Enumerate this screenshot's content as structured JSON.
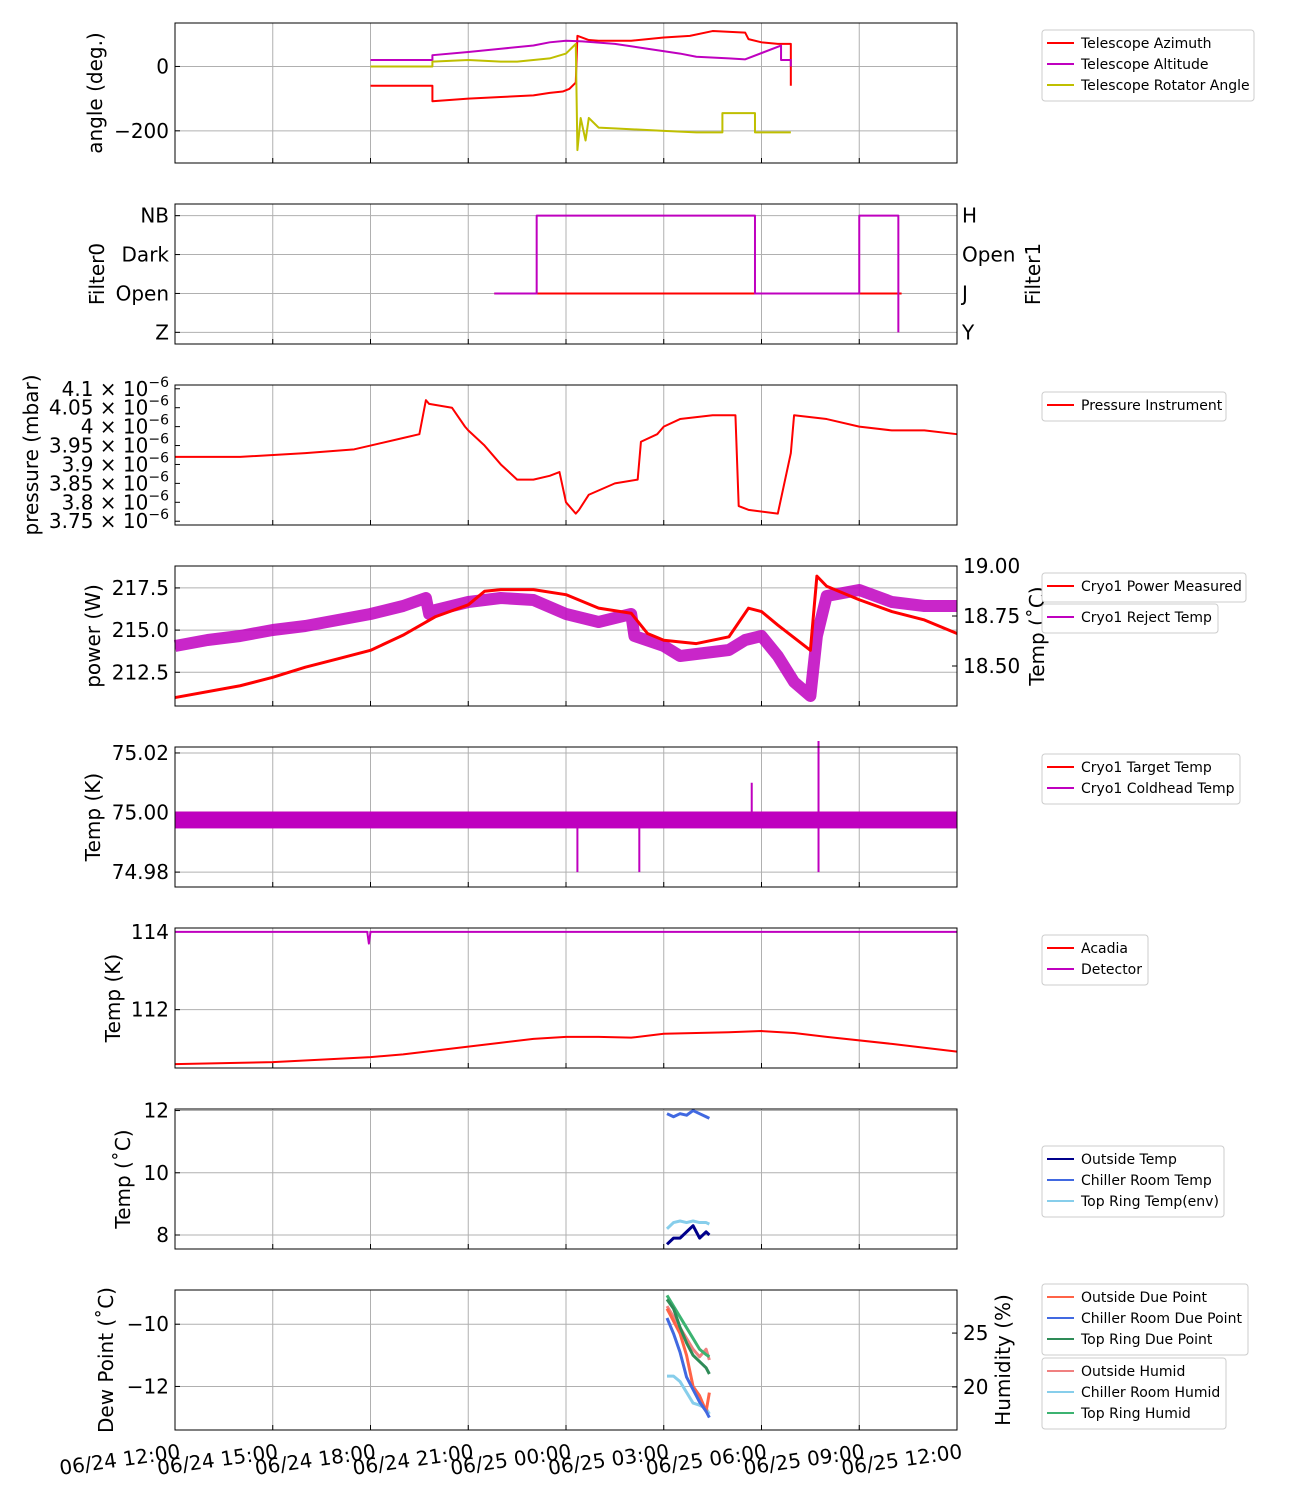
{
  "x_axis": {
    "ticks": [
      "06/24 12:00",
      "06/24 15:00",
      "06/24 18:00",
      "06/24 21:00",
      "06/25 00:00",
      "06/25 03:00",
      "06/25 06:00",
      "06/25 09:00",
      "06/25 12:00"
    ],
    "range_hours": [
      0,
      24
    ]
  },
  "chart_data": [
    {
      "type": "line",
      "id": "angles",
      "ylabel": "angle (deg.)",
      "ylim": [
        -300,
        135
      ],
      "yticks": [
        {
          "v": 0,
          "t": "0"
        },
        {
          "v": -200,
          "t": "−200"
        }
      ],
      "grid": true,
      "legend": "right",
      "series": [
        {
          "name": "Telescope Azimuth",
          "color": "#ff0000",
          "x": [
            6.0,
            7.9,
            7.9,
            9.0,
            10.0,
            11.0,
            11.5,
            11.9,
            12.1,
            12.3,
            12.35,
            12.7,
            13.0,
            14.0,
            15.0,
            15.8,
            16.5,
            17.5,
            17.6,
            18.0,
            18.5,
            18.9,
            18.9
          ],
          "y": [
            -60,
            -60,
            -108,
            -100,
            -95,
            -90,
            -82,
            -78,
            -70,
            -50,
            95,
            82,
            80,
            80,
            90,
            95,
            110,
            105,
            85,
            75,
            70,
            70,
            -60
          ]
        },
        {
          "name": "Telescope Altitude",
          "color": "#bf00bf",
          "x": [
            6.0,
            7.9,
            7.9,
            9.0,
            10.0,
            11.0,
            11.5,
            12.0,
            12.5,
            13.5,
            14.5,
            15.5,
            16.0,
            17.0,
            17.5,
            18.6,
            18.6,
            18.9,
            18.9
          ],
          "y": [
            20,
            20,
            35,
            45,
            55,
            65,
            75,
            80,
            78,
            70,
            55,
            40,
            30,
            25,
            22,
            65,
            20,
            20,
            0
          ]
        },
        {
          "name": "Telescope Rotator Angle",
          "color": "#bfbf00",
          "x": [
            6.0,
            7.9,
            7.9,
            9.0,
            10.0,
            10.5,
            11.0,
            11.5,
            12.0,
            12.2,
            12.3,
            12.35,
            12.45,
            12.6,
            12.7,
            12.9,
            13.0,
            14.0,
            15.0,
            16.0,
            16.5,
            16.8,
            16.8,
            17.8,
            17.8,
            18.0,
            18.5,
            18.9
          ],
          "y": [
            0,
            0,
            15,
            20,
            15,
            15,
            20,
            25,
            40,
            60,
            70,
            -260,
            -160,
            -230,
            -160,
            -180,
            -190,
            -195,
            -200,
            -205,
            -205,
            -205,
            -145,
            -145,
            -205,
            -205,
            -205,
            -205
          ]
        }
      ]
    },
    {
      "type": "step",
      "id": "filters",
      "ylabel": "Filter0",
      "ylabel_right": "Filter1",
      "left_ticks": [
        "Z",
        "Open",
        "Dark",
        "NB"
      ],
      "right_ticks": [
        "Y",
        "J",
        "Open",
        "H"
      ],
      "series": [
        {
          "name": "Filter0",
          "color": "#ff0000",
          "x": [
            9.8,
            22.3
          ],
          "y": [
            1,
            1
          ]
        },
        {
          "name": "Filter1",
          "color": "#bf00bf",
          "x": [
            9.8,
            11.1,
            11.1,
            17.8,
            17.8,
            21.0,
            21.0,
            22.2,
            22.2
          ],
          "y": [
            1,
            1,
            3,
            3,
            1,
            1,
            3,
            3,
            0
          ]
        }
      ]
    },
    {
      "type": "line",
      "id": "pressure",
      "ylabel": "pressure (mbar)",
      "ylim": [
        3.74,
        4.11
      ],
      "yticks": [
        {
          "v": 4.1,
          "t": "4.1"
        },
        {
          "v": 4.05,
          "t": "4.05"
        },
        {
          "v": 4.0,
          "t": "4"
        },
        {
          "v": 3.95,
          "t": "3.95"
        },
        {
          "v": 3.9,
          "t": "3.9"
        },
        {
          "v": 3.85,
          "t": "3.85"
        },
        {
          "v": 3.8,
          "t": "3.8"
        },
        {
          "v": 3.75,
          "t": "3.75"
        }
      ],
      "ytick_suffix_base": "× 10",
      "ytick_suffix_exp": "−6",
      "series": [
        {
          "name": "Pressure Instrument",
          "color": "#ff0000",
          "x": [
            0,
            2,
            4,
            5.5,
            6.0,
            7.0,
            7.5,
            7.7,
            7.8,
            8.5,
            8.9,
            9.0,
            9.5,
            10.0,
            10.5,
            11.0,
            11.5,
            11.8,
            12.0,
            12.3,
            12.4,
            12.7,
            13.5,
            14.2,
            14.3,
            14.8,
            15.0,
            15.5,
            16.5,
            17.2,
            17.3,
            17.6,
            18.5,
            18.9,
            19.0,
            20.0,
            21.0,
            22.0,
            23.0,
            24.0
          ],
          "y": [
            3.92,
            3.92,
            3.93,
            3.94,
            3.95,
            3.97,
            3.98,
            4.07,
            4.06,
            4.05,
            4.0,
            3.99,
            3.95,
            3.9,
            3.86,
            3.86,
            3.87,
            3.88,
            3.8,
            3.77,
            3.78,
            3.82,
            3.85,
            3.86,
            3.96,
            3.98,
            4.0,
            4.02,
            4.03,
            4.03,
            3.79,
            3.78,
            3.77,
            3.93,
            4.03,
            4.02,
            4.0,
            3.99,
            3.99,
            3.98
          ]
        }
      ]
    },
    {
      "type": "line",
      "id": "cryo_power",
      "ylabel": "power (W)",
      "ylabel_right": "Temp (˚C)",
      "ylim": [
        210.5,
        218.8
      ],
      "yticks": [
        {
          "v": 212.5,
          "t": "212.5"
        },
        {
          "v": 215.0,
          "t": "215.0"
        },
        {
          "v": 217.5,
          "t": "217.5"
        }
      ],
      "ylim_right": [
        18.3,
        19.0
      ],
      "yticks_right": [
        {
          "v": 18.5,
          "t": "18.50"
        },
        {
          "v": 18.75,
          "t": "18.75"
        },
        {
          "v": 19.0,
          "t": "19.00"
        }
      ],
      "series": [
        {
          "name": "Cryo1 Power Measured",
          "color": "#ff0000",
          "axis": "left",
          "x": [
            0,
            2,
            3,
            4,
            5,
            6,
            7,
            8,
            9,
            9.5,
            10,
            11,
            12,
            13,
            14,
            14.5,
            15,
            16,
            17,
            17.6,
            18,
            18.5,
            19.5,
            19.7,
            20,
            21,
            22,
            23,
            24
          ],
          "y": [
            211.0,
            211.7,
            212.2,
            212.8,
            213.3,
            213.8,
            214.7,
            215.8,
            216.5,
            217.3,
            217.4,
            217.4,
            217.1,
            216.3,
            216.0,
            214.8,
            214.4,
            214.2,
            214.6,
            216.3,
            216.1,
            215.3,
            213.8,
            218.2,
            217.6,
            216.8,
            216.1,
            215.6,
            214.8
          ]
        },
        {
          "name": "Cryo1 Reject Temp",
          "color": "#bf00bf",
          "axis": "right",
          "x": [
            0,
            1,
            2,
            3,
            4,
            5,
            6,
            7,
            7.7,
            7.8,
            8,
            9,
            10,
            11,
            12,
            13,
            14,
            14.1,
            15,
            15.5,
            16,
            17,
            17.5,
            18,
            18.5,
            19.0,
            19.5,
            19.7,
            20,
            21,
            22,
            23,
            24
          ],
          "y": [
            18.6,
            18.63,
            18.65,
            18.68,
            18.7,
            18.73,
            18.76,
            18.8,
            18.84,
            18.76,
            18.78,
            18.82,
            18.84,
            18.83,
            18.76,
            18.72,
            18.76,
            18.65,
            18.6,
            18.55,
            18.56,
            18.58,
            18.63,
            18.65,
            18.55,
            18.42,
            18.35,
            18.65,
            18.85,
            18.88,
            18.82,
            18.8,
            18.8
          ]
        }
      ]
    },
    {
      "type": "line",
      "id": "cryo_temps",
      "ylabel": "Temp (K)",
      "ylim": [
        74.975,
        75.022
      ],
      "yticks": [
        {
          "v": 74.98,
          "t": "74.98"
        },
        {
          "v": 75.0,
          "t": "75.00"
        },
        {
          "v": 75.02,
          "t": "75.02"
        }
      ],
      "series": [
        {
          "name": "Cryo1 Target Temp",
          "color": "#ff0000",
          "x": [
            0,
            24
          ],
          "y": [
            75.0,
            75.0
          ]
        },
        {
          "name": "Cryo1 Coldhead Temp",
          "color": "#bf00bf",
          "band": [
            74.995,
            75.0
          ],
          "x": [
            0,
            24
          ],
          "y": [
            74.9975,
            74.9975
          ],
          "spikes": [
            {
              "x": 12.35,
              "y": 74.98
            },
            {
              "x": 14.25,
              "y": 74.98
            },
            {
              "x": 17.7,
              "y": 75.01
            },
            {
              "x": 19.75,
              "y": 75.024
            },
            {
              "x": 19.75,
              "y": 74.98
            }
          ]
        }
      ]
    },
    {
      "type": "line",
      "id": "detector",
      "ylabel": "Temp (K)",
      "ylim": [
        110.5,
        114.1
      ],
      "yticks": [
        {
          "v": 112,
          "t": "112"
        },
        {
          "v": 114,
          "t": "114"
        }
      ],
      "series": [
        {
          "name": "Acadia",
          "color": "#ff0000",
          "x": [
            0,
            3,
            6,
            7,
            8,
            9,
            10,
            11,
            12,
            13,
            14,
            15,
            16,
            17,
            18,
            19,
            20,
            22,
            24
          ],
          "y": [
            110.6,
            110.65,
            110.78,
            110.85,
            110.95,
            111.05,
            111.15,
            111.25,
            111.3,
            111.3,
            111.28,
            111.38,
            111.4,
            111.42,
            111.45,
            111.4,
            111.3,
            111.12,
            110.92
          ]
        },
        {
          "name": "Detector",
          "color": "#bf00bf",
          "x": [
            0,
            5.9,
            5.95,
            6.0,
            24
          ],
          "y": [
            114.0,
            114.0,
            113.7,
            114.0,
            114.0
          ]
        }
      ]
    },
    {
      "type": "line",
      "id": "env_temps",
      "ylabel": "Temp (˚C)",
      "ylim": [
        7.55,
        12.05
      ],
      "yticks": [
        {
          "v": 8,
          "t": "8"
        },
        {
          "v": 10,
          "t": "10"
        },
        {
          "v": 12,
          "t": "12"
        }
      ],
      "series": [
        {
          "name": "Outside Temp",
          "color": "#00008b",
          "x": [
            15.1,
            15.3,
            15.5,
            15.7,
            15.9,
            16.1,
            16.3,
            16.4
          ],
          "y": [
            7.7,
            7.9,
            7.9,
            8.1,
            8.3,
            7.9,
            8.1,
            8.0
          ]
        },
        {
          "name": "Chiller Room Temp",
          "color": "#4169e1",
          "x": [
            15.1,
            15.3,
            15.5,
            15.7,
            15.9,
            16.1,
            16.3,
            16.4
          ],
          "y": [
            11.9,
            11.8,
            11.9,
            11.85,
            12.0,
            11.9,
            11.8,
            11.75
          ]
        },
        {
          "name": "Top Ring Temp(env)",
          "color": "#87ceeb",
          "x": [
            15.1,
            15.3,
            15.5,
            15.7,
            15.9,
            16.1,
            16.3,
            16.4
          ],
          "y": [
            8.2,
            8.4,
            8.45,
            8.4,
            8.45,
            8.4,
            8.4,
            8.35
          ]
        }
      ]
    },
    {
      "type": "line",
      "id": "dewpoint",
      "ylabel": "Dew Point (˚C)",
      "ylabel_right": "Humidity (%)",
      "ylim": [
        -13.4,
        -8.9
      ],
      "yticks": [
        {
          "v": -12,
          "t": "−12"
        },
        {
          "v": -10,
          "t": "−10"
        }
      ],
      "ylim_right": [
        16,
        29
      ],
      "yticks_right": [
        {
          "v": 20,
          "t": "20"
        },
        {
          "v": 25,
          "t": "25"
        }
      ],
      "series": [
        {
          "name": "Outside Due Point",
          "color": "#ff6347",
          "axis": "left",
          "x": [
            15.1,
            15.3,
            15.5,
            15.7,
            15.9,
            16.1,
            16.3,
            16.4
          ],
          "y": [
            -9.5,
            -9.9,
            -10.3,
            -11.0,
            -12.0,
            -12.3,
            -12.8,
            -12.2
          ]
        },
        {
          "name": "Chiller Room Due Point",
          "color": "#4169e1",
          "axis": "left",
          "x": [
            15.1,
            15.3,
            15.5,
            15.7,
            15.9,
            16.1,
            16.3,
            16.4
          ],
          "y": [
            -9.8,
            -10.3,
            -10.9,
            -11.7,
            -12.1,
            -12.5,
            -12.8,
            -13.0
          ]
        },
        {
          "name": "Top Ring Due Point",
          "color": "#2e8b57",
          "axis": "left",
          "x": [
            15.1,
            15.3,
            15.5,
            15.7,
            15.9,
            16.1,
            16.3,
            16.4
          ],
          "y": [
            -9.2,
            -9.5,
            -10.1,
            -10.6,
            -11.0,
            -11.2,
            -11.4,
            -11.6
          ]
        }
      ]
    },
    {
      "type": "line",
      "id": "humidity",
      "axis": "right-of-dewpoint",
      "series": [
        {
          "name": "Outside Humid",
          "color": "#f08080",
          "x": [
            15.1,
            15.3,
            15.5,
            15.7,
            15.9,
            16.1,
            16.3,
            16.4
          ],
          "y": [
            27.5,
            26.5,
            25.5,
            24.5,
            23.5,
            22.8,
            23.5,
            22.5
          ]
        },
        {
          "name": "Chiller Room Humid",
          "color": "#87ceeb",
          "x": [
            15.1,
            15.3,
            15.5,
            15.7,
            15.9,
            16.1,
            16.3,
            16.4
          ],
          "y": [
            21.0,
            21.0,
            20.5,
            19.5,
            18.5,
            18.3,
            18.0,
            17.5
          ]
        },
        {
          "name": "Top Ring Humid",
          "color": "#3cb371",
          "x": [
            15.1,
            15.3,
            15.5,
            15.7,
            15.9,
            16.1,
            16.3,
            16.4
          ],
          "y": [
            28.5,
            27.5,
            26.5,
            25.5,
            24.5,
            23.5,
            23.0,
            22.8
          ]
        }
      ]
    }
  ],
  "legends": [
    {
      "panel": "angles",
      "entries": [
        "Telescope Azimuth",
        "Telescope Altitude",
        "Telescope Rotator Angle"
      ]
    },
    {
      "panel": "pressure",
      "entries": [
        "Pressure Instrument"
      ]
    },
    {
      "panel": "cryo_power",
      "entries": [
        "Cryo1 Power Measured"
      ]
    },
    {
      "panel": "cryo_power_right",
      "entries": [
        "Cryo1 Reject Temp"
      ]
    },
    {
      "panel": "cryo_temps",
      "entries": [
        "Cryo1 Target Temp",
        "Cryo1 Coldhead Temp"
      ]
    },
    {
      "panel": "detector",
      "entries": [
        "Acadia",
        "Detector"
      ]
    },
    {
      "panel": "env_temps",
      "entries": [
        "Outside Temp",
        "Chiller Room Temp",
        "Top Ring Temp(env)"
      ]
    },
    {
      "panel": "dewpoint",
      "entries": [
        "Outside Due Point",
        "Chiller Room Due Point",
        "Top Ring Due Point"
      ]
    },
    {
      "panel": "humidity",
      "entries": [
        "Outside Humid",
        "Chiller Room Humid",
        "Top Ring Humid"
      ]
    }
  ],
  "colors": {
    "left_axis_accent": "#ff0000",
    "right_axis_accent": "#bf00bf",
    "grid": "#b0b0b0"
  }
}
